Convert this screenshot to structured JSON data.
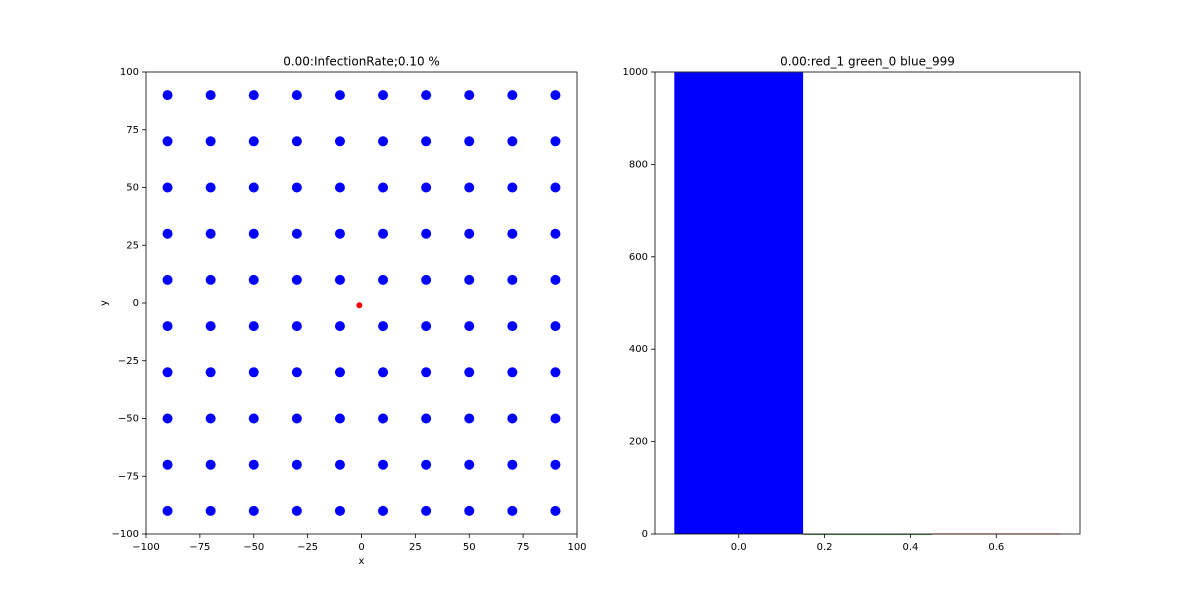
{
  "chart_data": [
    {
      "type": "scatter",
      "title": "0.00:InfectionRate;0.10 %",
      "x_label": "x",
      "y_label": "y",
      "xlim": [
        -100,
        100
      ],
      "ylim": [
        -100,
        100
      ],
      "xticks": [
        {
          "value": -100,
          "label": "−100"
        },
        {
          "value": -75,
          "label": "−75"
        },
        {
          "value": -50,
          "label": "−50"
        },
        {
          "value": -25,
          "label": "−25"
        },
        0,
        25,
        50,
        75,
        100
      ],
      "yticks": [
        {
          "value": -100,
          "label": "−100"
        },
        {
          "value": -75,
          "label": "−75"
        },
        {
          "value": -50,
          "label": "−50"
        },
        {
          "value": -25,
          "label": "−25"
        },
        0,
        25,
        50,
        75,
        100
      ],
      "series": [
        {
          "color": "#0000ff",
          "x": [
            -90,
            -70,
            -50,
            -30,
            -10,
            10,
            30,
            50,
            70,
            90,
            -90,
            -70,
            -50,
            -30,
            -10,
            10,
            30,
            50,
            70,
            90,
            -90,
            -70,
            -50,
            -30,
            -10,
            10,
            30,
            50,
            70,
            90,
            -90,
            -70,
            -50,
            -30,
            -10,
            10,
            30,
            50,
            70,
            90,
            -90,
            -70,
            -50,
            -30,
            -10,
            10,
            30,
            50,
            70,
            90,
            -90,
            -70,
            -50,
            -30,
            -10,
            10,
            30,
            50,
            70,
            90,
            -90,
            -70,
            -50,
            -30,
            -10,
            10,
            30,
            50,
            70,
            90,
            -90,
            -70,
            -50,
            -30,
            -10,
            10,
            30,
            50,
            70,
            90,
            -90,
            -70,
            -50,
            -30,
            -10,
            10,
            30,
            50,
            70,
            90,
            -90,
            -70,
            -50,
            -30,
            -10,
            10,
            30,
            50,
            70,
            90
          ],
          "y": [
            90,
            90,
            90,
            90,
            90,
            90,
            90,
            90,
            90,
            90,
            70,
            70,
            70,
            70,
            70,
            70,
            70,
            70,
            70,
            70,
            50,
            50,
            50,
            50,
            50,
            50,
            50,
            50,
            50,
            50,
            30,
            30,
            30,
            30,
            30,
            30,
            30,
            30,
            30,
            30,
            10,
            10,
            10,
            10,
            10,
            10,
            10,
            10,
            10,
            10,
            -10,
            -10,
            -10,
            -10,
            -10,
            -10,
            -10,
            -10,
            -10,
            -10,
            -30,
            -30,
            -30,
            -30,
            -30,
            -30,
            -30,
            -30,
            -30,
            -30,
            -50,
            -50,
            -50,
            -50,
            -50,
            -50,
            -50,
            -50,
            -50,
            -50,
            -70,
            -70,
            -70,
            -70,
            -70,
            -70,
            -70,
            -70,
            -70,
            -70,
            -90,
            -90,
            -90,
            -90,
            -90,
            -90,
            -90,
            -90,
            -90,
            -90
          ]
        },
        {
          "color": "#ff0000",
          "x": [
            -1
          ],
          "y": [
            -1
          ]
        }
      ]
    },
    {
      "type": "bar",
      "title": "0.00:red_1 green_0 blue_999",
      "x": [
        0,
        0.3,
        0.6
      ],
      "values": [
        999,
        0,
        1
      ],
      "colors": [
        "#0000ff",
        "#008000",
        "#ff0000"
      ],
      "width": 0.3,
      "xlim": [
        -0.195,
        0.795
      ],
      "ylim": [
        0,
        1000
      ],
      "xticks": [
        {
          "value": 0,
          "label": "0.0"
        },
        {
          "value": 0.2,
          "label": "0.2"
        },
        {
          "value": 0.4,
          "label": "0.4"
        },
        {
          "value": 0.6,
          "label": "0.6"
        }
      ],
      "yticks": [
        0,
        200,
        400,
        600,
        800,
        1000
      ]
    }
  ]
}
